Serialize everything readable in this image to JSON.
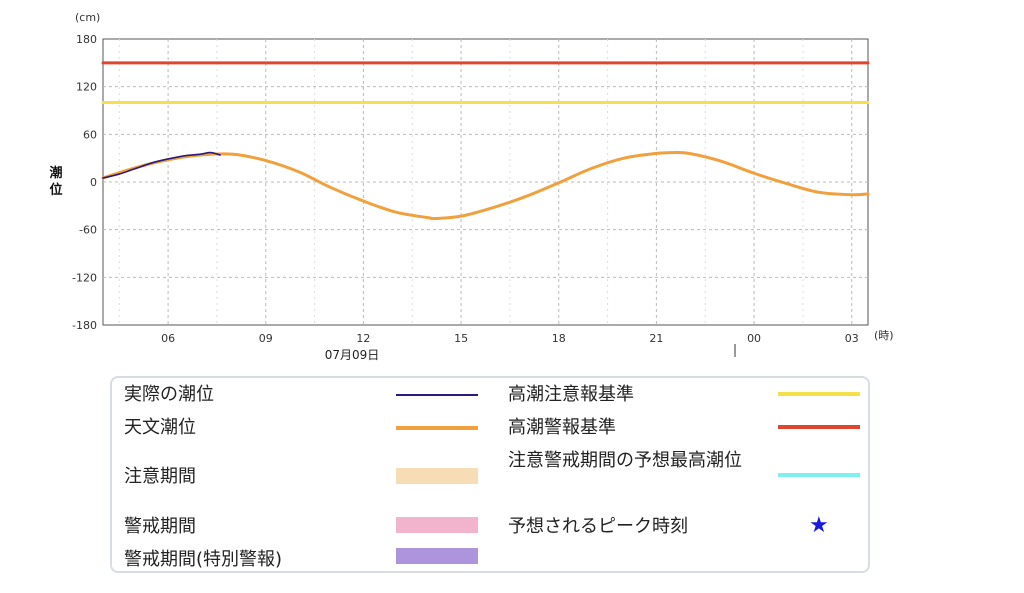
{
  "chart_data": {
    "type": "line",
    "y_unit": "(cm)",
    "x_unit": "(時)",
    "ylabel": "潮位",
    "ylim": [
      -180,
      180
    ],
    "y_ticks": [
      "180",
      "120",
      "60",
      "0",
      "-60",
      "-120",
      "-180"
    ],
    "x_ticks": [
      "06",
      "09",
      "12",
      "15",
      "18",
      "21",
      "00",
      "03"
    ],
    "date_label": "07月09日",
    "xlim_hours": [
      4.0,
      27.5
    ],
    "grid": true,
    "series": [
      {
        "name": "実際の潮位",
        "color": "#2a1a7a",
        "x": [
          4.0,
          4.5,
          5.0,
          5.5,
          6.0,
          6.5,
          7.0,
          7.3,
          7.6
        ],
        "y": [
          5,
          10,
          17,
          24,
          29,
          33,
          35,
          37,
          34
        ]
      },
      {
        "name": "天文潮位",
        "color": "#f0a03c",
        "x": [
          4.0,
          5.0,
          6.0,
          7.0,
          8.0,
          9.0,
          10.0,
          11.0,
          12.0,
          13.0,
          14.0,
          14.2,
          15.0,
          16.0,
          17.0,
          18.0,
          19.0,
          20.0,
          21.0,
          21.5,
          22.0,
          23.0,
          24.0,
          25.0,
          26.0,
          27.0,
          27.5
        ],
        "y": [
          5,
          18,
          28,
          34,
          35,
          27,
          13,
          -7,
          -24,
          -38,
          -45,
          -46,
          -43,
          -32,
          -18,
          -1,
          17,
          30,
          36,
          37,
          36,
          26,
          11,
          -2,
          -13,
          -16,
          -15
        ]
      },
      {
        "name": "高潮注意報基準",
        "color": "#f5e04a",
        "x": [
          4.0,
          27.5
        ],
        "y": [
          100,
          100
        ]
      },
      {
        "name": "高潮警報基準",
        "color": "#e0452e",
        "x": [
          4.0,
          27.5
        ],
        "y": [
          150,
          150
        ]
      }
    ]
  },
  "legend": {
    "left": [
      {
        "label": "実際の潮位",
        "kind": "line",
        "color": "#2a1a7a"
      },
      {
        "label": "天文潮位",
        "kind": "line",
        "color": "#f0a03c"
      },
      {
        "label": "注意期間",
        "kind": "band",
        "color": "#f7ddb5"
      },
      {
        "label": "警戒期間",
        "kind": "band",
        "color": "#f2b3cc"
      },
      {
        "label": "警戒期間(特別警報)",
        "kind": "band",
        "color": "#ad94dc"
      }
    ],
    "right": [
      {
        "label": "高潮注意報基準",
        "kind": "line",
        "color": "#f5e04a"
      },
      {
        "label": "高潮警報基準",
        "kind": "line",
        "color": "#e0452e"
      },
      {
        "label": "注意警戒期間の予想最高潮位",
        "kind": "line",
        "color": "#7ef0ee"
      },
      {
        "label": "予想されるピーク時刻",
        "kind": "star",
        "symbol": "★",
        "color": "#1a1adf"
      }
    ]
  }
}
